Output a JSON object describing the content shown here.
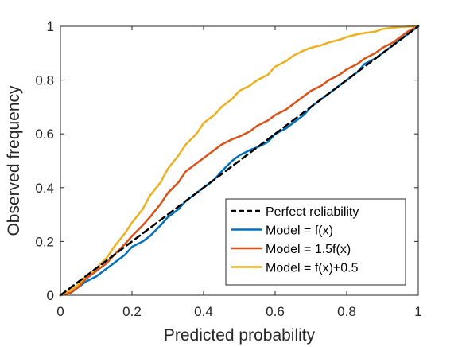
{
  "chart_data": {
    "type": "line",
    "title": "",
    "xlabel": "Predicted probability",
    "ylabel": "Observed frequency",
    "xlim": [
      0,
      1
    ],
    "ylim": [
      0,
      1
    ],
    "xticks": [
      0,
      0.2,
      0.4,
      0.6,
      0.8,
      1
    ],
    "xtick_labels": [
      "0",
      "0.2",
      "0.4",
      "0.6",
      "0.8",
      "1"
    ],
    "yticks": [
      0,
      0.2,
      0.4,
      0.6,
      0.8,
      1
    ],
    "ytick_labels": [
      "0",
      "0.2",
      "0.4",
      "0.6",
      "0.8",
      "1"
    ],
    "grid": false,
    "legend_position": "bottom-right",
    "series": [
      {
        "name": "Perfect reliability",
        "color": "#000000",
        "style": "dashed",
        "x": [
          0,
          1
        ],
        "y": [
          0,
          1
        ]
      },
      {
        "name": "Model = f(x)",
        "color": "#0072BD",
        "style": "solid",
        "x": [
          0,
          0.03,
          0.05,
          0.07,
          0.1,
          0.13,
          0.15,
          0.18,
          0.2,
          0.23,
          0.25,
          0.28,
          0.3,
          0.33,
          0.35,
          0.38,
          0.4,
          0.43,
          0.45,
          0.48,
          0.5,
          0.53,
          0.55,
          0.58,
          0.6,
          0.63,
          0.65,
          0.68,
          0.7,
          0.73,
          0.75,
          0.78,
          0.8,
          0.83,
          0.85,
          0.88,
          0.9,
          0.93,
          0.95,
          0.97,
          1
        ],
        "y": [
          0,
          0.01,
          0.03,
          0.05,
          0.07,
          0.1,
          0.12,
          0.15,
          0.18,
          0.2,
          0.22,
          0.26,
          0.29,
          0.32,
          0.35,
          0.38,
          0.4,
          0.43,
          0.46,
          0.5,
          0.52,
          0.54,
          0.55,
          0.57,
          0.6,
          0.62,
          0.64,
          0.67,
          0.7,
          0.73,
          0.75,
          0.78,
          0.8,
          0.83,
          0.86,
          0.88,
          0.9,
          0.93,
          0.95,
          0.97,
          1
        ]
      },
      {
        "name": "Model = 1.5f(x)",
        "color": "#D95319",
        "style": "solid",
        "x": [
          0,
          0.03,
          0.05,
          0.07,
          0.1,
          0.13,
          0.15,
          0.18,
          0.2,
          0.23,
          0.25,
          0.28,
          0.3,
          0.33,
          0.35,
          0.38,
          0.4,
          0.43,
          0.45,
          0.48,
          0.5,
          0.53,
          0.55,
          0.58,
          0.6,
          0.63,
          0.65,
          0.68,
          0.7,
          0.73,
          0.75,
          0.78,
          0.8,
          0.83,
          0.85,
          0.88,
          0.9,
          0.93,
          0.95,
          0.97,
          1
        ],
        "y": [
          0,
          0.01,
          0.03,
          0.06,
          0.09,
          0.12,
          0.15,
          0.19,
          0.22,
          0.26,
          0.29,
          0.34,
          0.38,
          0.42,
          0.46,
          0.49,
          0.51,
          0.54,
          0.56,
          0.58,
          0.59,
          0.61,
          0.63,
          0.65,
          0.67,
          0.69,
          0.71,
          0.74,
          0.76,
          0.78,
          0.8,
          0.82,
          0.84,
          0.86,
          0.88,
          0.9,
          0.92,
          0.94,
          0.96,
          0.98,
          1
        ]
      },
      {
        "name": "Model = f(x)+0.5",
        "color": "#EDB120",
        "style": "solid",
        "x": [
          0,
          0.03,
          0.05,
          0.07,
          0.1,
          0.13,
          0.15,
          0.18,
          0.2,
          0.23,
          0.25,
          0.28,
          0.3,
          0.33,
          0.35,
          0.38,
          0.4,
          0.43,
          0.45,
          0.48,
          0.5,
          0.53,
          0.55,
          0.58,
          0.6,
          0.63,
          0.65,
          0.68,
          0.7,
          0.73,
          0.75,
          0.78,
          0.8,
          0.83,
          0.85,
          0.88,
          0.9,
          0.93,
          0.95,
          0.97,
          1
        ],
        "y": [
          0,
          0.02,
          0.04,
          0.07,
          0.1,
          0.14,
          0.18,
          0.23,
          0.27,
          0.32,
          0.37,
          0.42,
          0.47,
          0.52,
          0.56,
          0.6,
          0.64,
          0.67,
          0.7,
          0.73,
          0.76,
          0.78,
          0.8,
          0.82,
          0.85,
          0.87,
          0.89,
          0.91,
          0.92,
          0.93,
          0.94,
          0.95,
          0.96,
          0.97,
          0.975,
          0.98,
          0.99,
          0.995,
          0.997,
          0.999,
          1
        ]
      }
    ]
  }
}
